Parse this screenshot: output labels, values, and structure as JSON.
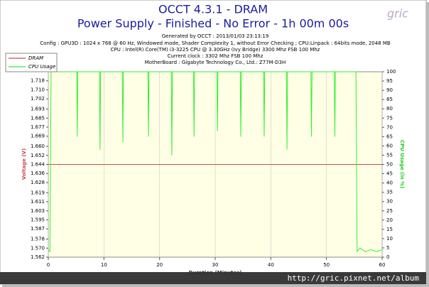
{
  "chart_data": {
    "type": "line",
    "title": "OCCT 4.3.1 - DRAM",
    "subtitle": "Power Supply - Finished - No Error - 1h 00m 00s",
    "info": [
      "Generated by OCCT : 2013/01/03 23:13:19",
      "Config : GPU3D : 1024 x 768 @ 60 Hz, Windowed mode, Shader Complexity 1, without Error Checking ; CPU:Linpack : 64bits mode, 2048 MB",
      "CPU : Intel(R) Core(TM) i3-3225 CPU @ 3.30GHz (Ivy Bridge) 3300 Mhz FSB 100 Mhz",
      "Current clock : 3302 Mhz FSB 100 Mhz",
      "MotherBoard : Gigabyte Technology Co., Ltd.: Z77M-D3H"
    ],
    "watermark": [
      "gric",
      "http://gric.pixnet.net/album"
    ],
    "xlabel": "Duration (Minutes)",
    "ylabel": "Voltage (V)",
    "y2label": "CPU Usage (in %)",
    "xlim": [
      0,
      60
    ],
    "xticks": [
      0,
      10,
      20,
      30,
      40,
      50,
      60
    ],
    "ylim": [
      1.562,
      1.726
    ],
    "yticks": [
      1.562,
      {
        "value": 1.57,
        "label": "1.570"
      },
      1.578,
      1.587,
      1.595,
      1.603,
      1.611,
      1.619,
      1.628,
      1.636,
      1.644,
      1.652,
      {
        "value": 1.66,
        "label": "1.660"
      },
      1.669,
      1.677,
      1.685,
      1.693,
      1.702,
      {
        "value": 1.71,
        "label": "1.710"
      },
      1.718
    ],
    "y2lim": [
      0,
      100
    ],
    "y2ticks": [
      0,
      5,
      10,
      15,
      20,
      25,
      30,
      35,
      40,
      45,
      50,
      55,
      60,
      65,
      70,
      75,
      80,
      85,
      90,
      95,
      100
    ],
    "grid": "x",
    "legend": "top-left",
    "series": [
      {
        "name": "DRAM",
        "color": "#c0504d",
        "x": [
          0,
          60
        ],
        "values": [
          1.644,
          1.644
        ]
      },
      {
        "name": "CPU Usage",
        "color": "#33ee33",
        "axis": "y2",
        "x": [
          0,
          0.3,
          0.5,
          5.1,
          5.2,
          5.3,
          9.2,
          9.3,
          9.4,
          13.3,
          13.4,
          13.5,
          17.9,
          18,
          18.1,
          22.1,
          22.2,
          22.3,
          26.1,
          26.2,
          26.3,
          30.3,
          30.4,
          30.5,
          34.5,
          34.6,
          34.7,
          38.7,
          38.8,
          38.9,
          42.8,
          42.9,
          43,
          47.2,
          47.3,
          47.4,
          51.4,
          51.5,
          51.6,
          55.3,
          55.5,
          56,
          57,
          58,
          59,
          60
        ],
        "values": [
          4,
          3,
          100,
          100,
          65,
          100,
          100,
          58,
          100,
          100,
          62,
          100,
          100,
          65,
          100,
          100,
          55,
          100,
          100,
          65,
          100,
          100,
          68,
          100,
          100,
          65,
          100,
          100,
          65,
          100,
          100,
          58,
          100,
          100,
          65,
          100,
          100,
          65,
          100,
          100,
          3,
          5,
          3,
          4,
          3,
          4
        ]
      }
    ]
  }
}
